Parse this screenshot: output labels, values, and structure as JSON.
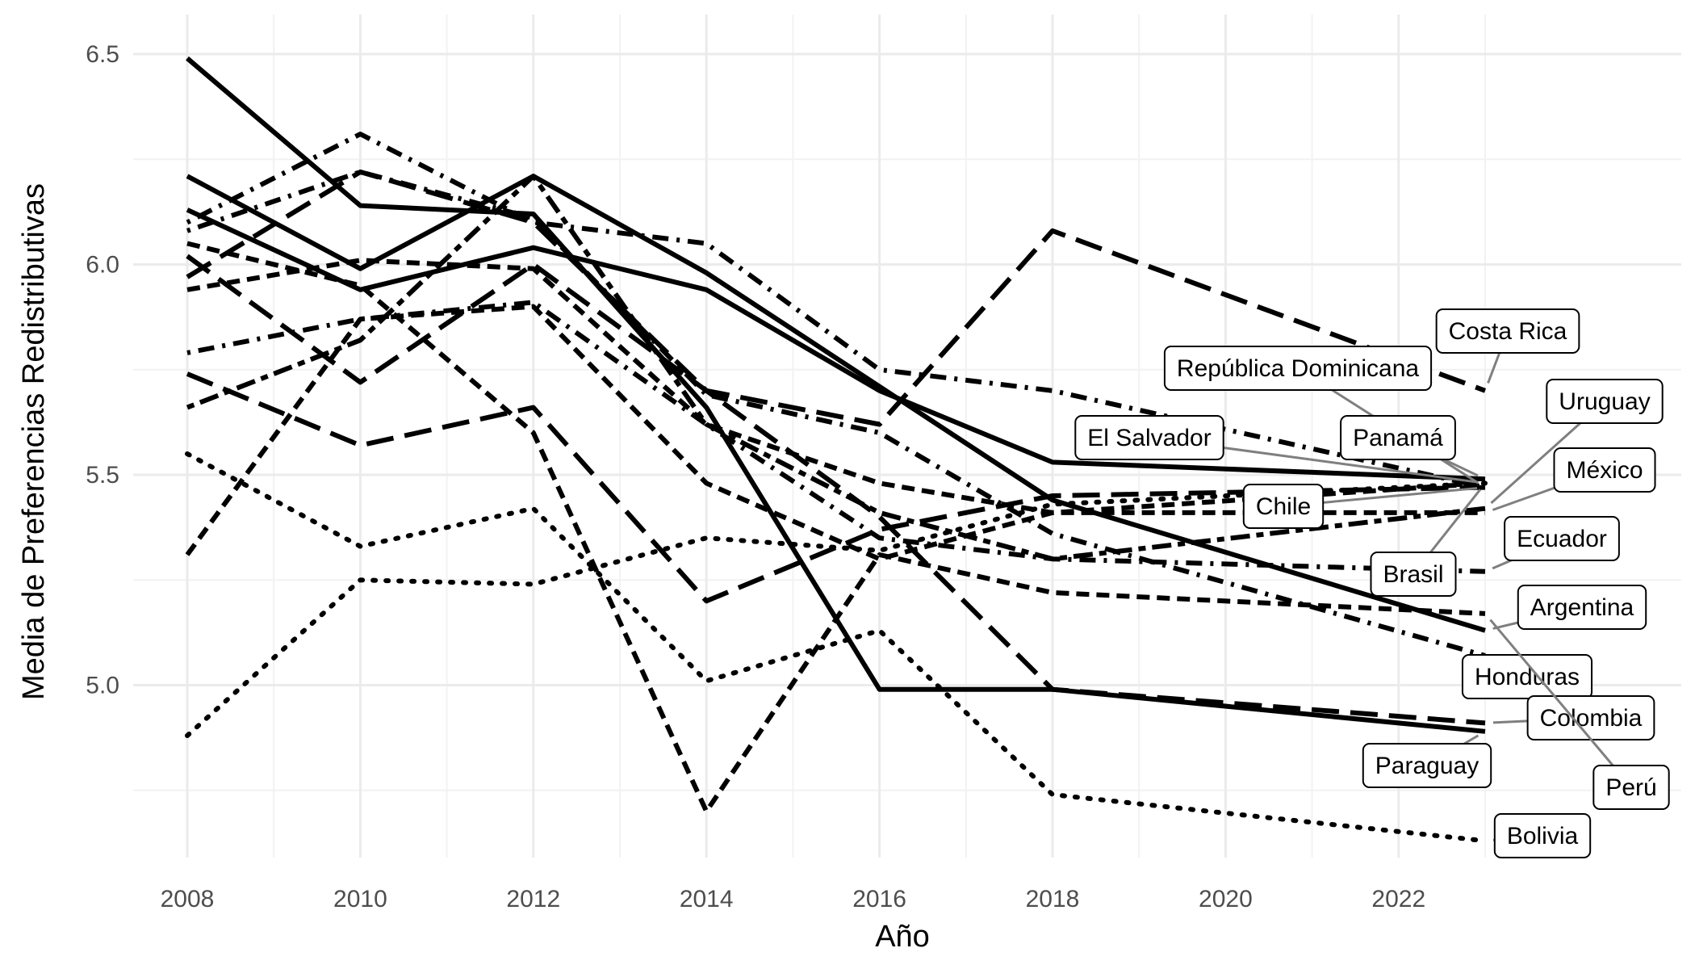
{
  "chart_data": {
    "type": "line",
    "xlabel": "Año",
    "ylabel": "Media de Preferencias Redistributivas",
    "xlim": [
      2008,
      2023
    ],
    "ylim": [
      4.6,
      6.6
    ],
    "x_ticks": [
      2008,
      2010,
      2012,
      2014,
      2016,
      2018,
      2020,
      2022
    ],
    "y_ticks": [
      5.0,
      5.5,
      6.0,
      6.5
    ],
    "y_tick_labels": [
      "5.0",
      "5.5",
      "6.0",
      "6.5"
    ],
    "grid": true,
    "legend": "none",
    "series": [
      {
        "name": "Costa Rica",
        "dash": "longdash",
        "x": [
          2008,
          2010,
          2012,
          2014,
          2016,
          2018,
          2023
        ],
        "y": [
          5.97,
          6.22,
          6.1,
          5.7,
          5.62,
          6.08,
          5.7
        ]
      },
      {
        "name": "República Dominicana",
        "dash": "dotdash",
        "x": [
          2008,
          2010,
          2012,
          2014,
          2016,
          2018,
          2023
        ],
        "y": [
          6.1,
          6.31,
          6.1,
          6.05,
          5.75,
          5.7,
          5.47
        ]
      },
      {
        "name": "Panamá",
        "dash": "solid",
        "x": [
          2008,
          2010,
          2012,
          2014,
          2016,
          2018,
          2023
        ],
        "y": [
          6.13,
          5.94,
          6.04,
          5.94,
          5.7,
          5.53,
          5.49
        ]
      },
      {
        "name": "El Salvador",
        "dash": "dashed",
        "x": [
          2008,
          2010,
          2012,
          2014,
          2016,
          2018,
          2023
        ],
        "y": [
          5.94,
          6.01,
          5.99,
          5.62,
          5.48,
          5.41,
          5.48
        ]
      },
      {
        "name": "Uruguay",
        "dash": "twodash",
        "x": [
          2008,
          2010,
          2012,
          2014,
          2016,
          2018,
          2023
        ],
        "y": [
          5.66,
          5.82,
          6.21,
          5.62,
          5.41,
          5.3,
          5.42
        ]
      },
      {
        "name": "Chile",
        "dash": "longdash",
        "x": [
          2008,
          2010,
          2012,
          2014,
          2016,
          2018,
          2023
        ],
        "y": [
          5.74,
          5.57,
          5.66,
          5.2,
          5.37,
          5.45,
          5.47
        ]
      },
      {
        "name": "México",
        "dash": "dashed",
        "x": [
          2008,
          2010,
          2012,
          2014,
          2016,
          2018,
          2023
        ],
        "y": [
          5.31,
          5.87,
          5.9,
          5.48,
          5.3,
          5.41,
          5.41
        ]
      },
      {
        "name": "Ecuador",
        "dash": "dotdash",
        "x": [
          2008,
          2010,
          2012,
          2014,
          2016,
          2018,
          2023
        ],
        "y": [
          5.79,
          5.87,
          5.91,
          5.62,
          5.35,
          5.3,
          5.27
        ]
      },
      {
        "name": "Brasil",
        "dash": "dotted",
        "x": [
          2008,
          2010,
          2012,
          2014,
          2016,
          2018,
          2023
        ],
        "y": [
          4.88,
          5.25,
          5.24,
          5.35,
          5.32,
          5.43,
          5.48
        ]
      },
      {
        "name": "Argentina",
        "dash": "solid",
        "x": [
          2008,
          2010,
          2012,
          2014,
          2016,
          2018,
          2023
        ],
        "y": [
          6.21,
          5.99,
          6.21,
          5.98,
          5.71,
          5.44,
          5.13
        ]
      },
      {
        "name": "Honduras",
        "dash": "dotdash",
        "x": [
          2008,
          2010,
          2012,
          2014,
          2016,
          2018,
          2023
        ],
        "y": [
          6.08,
          6.22,
          6.11,
          5.69,
          5.6,
          5.36,
          5.07
        ]
      },
      {
        "name": "Colombia",
        "dash": "longdash",
        "x": [
          2008,
          2010,
          2012,
          2014,
          2016,
          2018,
          2023
        ],
        "y": [
          6.02,
          5.72,
          6.0,
          5.7,
          5.4,
          4.99,
          4.91
        ]
      },
      {
        "name": "Perú",
        "dash": "dashed",
        "x": [
          2008,
          2010,
          2012,
          2014,
          2016,
          2018,
          2023
        ],
        "y": [
          6.05,
          5.95,
          5.6,
          4.7,
          5.31,
          5.22,
          5.17
        ]
      },
      {
        "name": "Paraguay",
        "dash": "solid",
        "x": [
          2008,
          2010,
          2012,
          2014,
          2016,
          2018,
          2023
        ],
        "y": [
          6.49,
          6.14,
          6.12,
          5.66,
          4.99,
          4.99,
          4.89
        ]
      },
      {
        "name": "Bolivia",
        "dash": "dotted",
        "x": [
          2008,
          2010,
          2012,
          2014,
          2016,
          2018,
          2023
        ],
        "y": [
          5.55,
          5.33,
          5.42,
          5.01,
          5.13,
          4.74,
          4.63
        ]
      }
    ],
    "labels": [
      {
        "name": "Costa Rica"
      },
      {
        "name": "República Dominicana"
      },
      {
        "name": "Uruguay"
      },
      {
        "name": "El Salvador"
      },
      {
        "name": "Panamá"
      },
      {
        "name": "México"
      },
      {
        "name": "Chile"
      },
      {
        "name": "Ecuador"
      },
      {
        "name": "Brasil"
      },
      {
        "name": "Argentina"
      },
      {
        "name": "Honduras"
      },
      {
        "name": "Colombia"
      },
      {
        "name": "Paraguay"
      },
      {
        "name": "Perú"
      },
      {
        "name": "Bolivia"
      }
    ]
  }
}
